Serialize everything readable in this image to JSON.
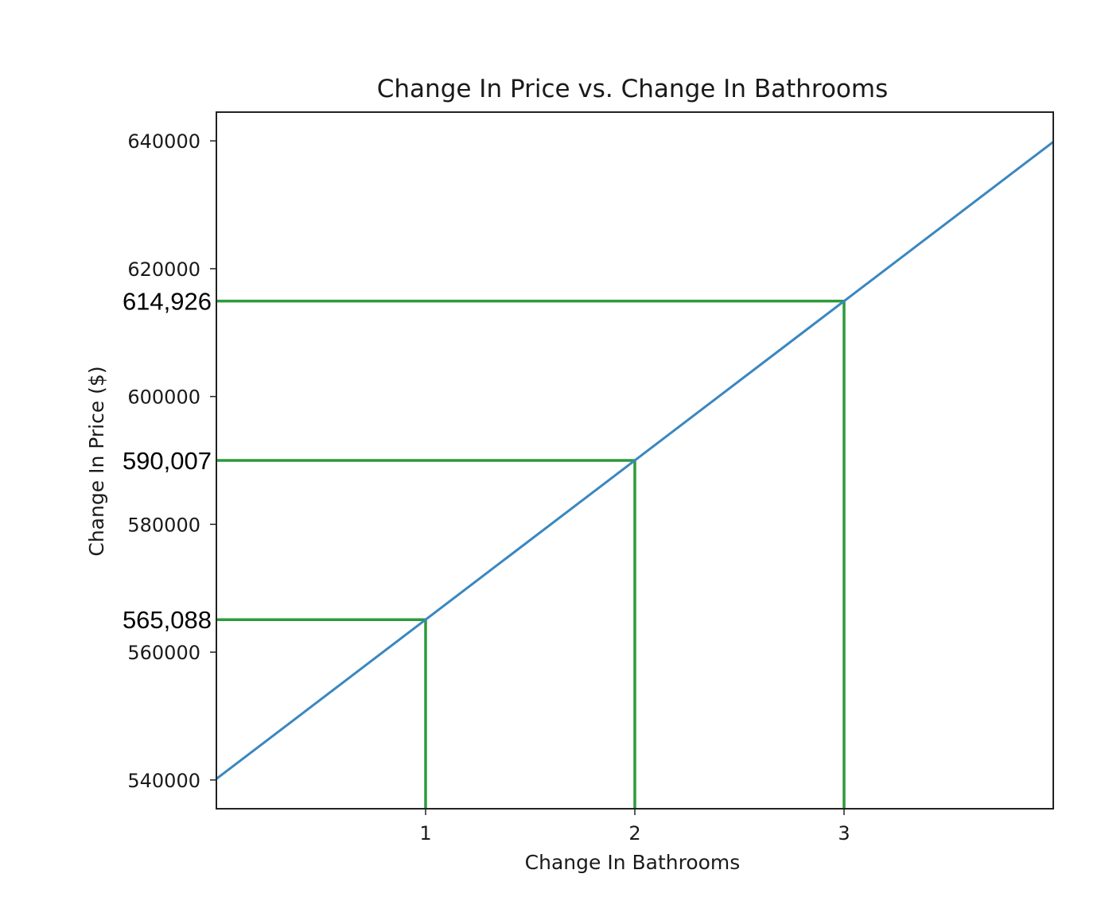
{
  "chart_data": {
    "type": "line",
    "title": "Change In Price vs. Change In Bathrooms",
    "xlabel": "Change In Bathrooms",
    "ylabel": "Change In Price ($)",
    "xlim": [
      0,
      4
    ],
    "ylim": [
      535500,
      644500
    ],
    "grid": false,
    "x_ticks": [
      1,
      2,
      3
    ],
    "x_tick_labels": [
      "1",
      "2",
      "3"
    ],
    "y_ticks": [
      540000,
      560000,
      580000,
      600000,
      620000,
      640000
    ],
    "y_tick_labels": [
      "540000",
      "560000",
      "580000",
      "600000",
      "620000",
      "640000"
    ],
    "series": [
      {
        "color": "#3a87c0",
        "x": [
          0,
          4
        ],
        "y": [
          540169,
          639845
        ]
      }
    ],
    "reference_points": [
      {
        "x": 1,
        "y": 565088,
        "label": "565,088"
      },
      {
        "x": 2,
        "y": 590007,
        "label": "590,007"
      },
      {
        "x": 3,
        "y": 614926,
        "label": "614,926"
      }
    ],
    "reference_line_color": "#2e9a3a"
  }
}
